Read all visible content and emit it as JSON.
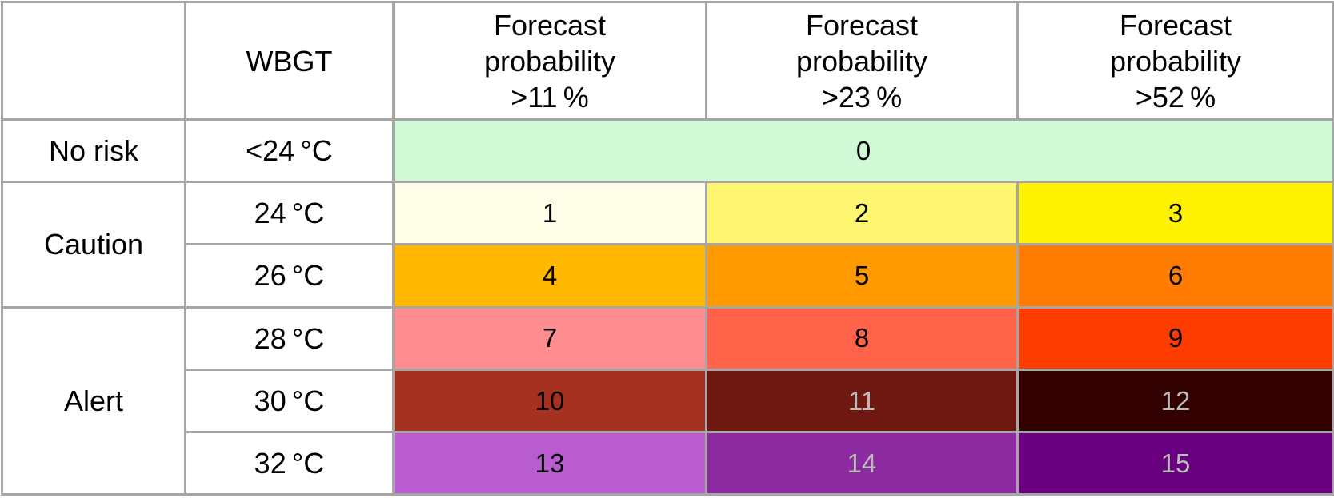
{
  "header": {
    "corner": "",
    "wbgt": "WBGT",
    "columns": [
      [
        "Forecast",
        "probability",
        ">11 %"
      ],
      [
        "Forecast",
        "probability",
        ">23 %"
      ],
      [
        "Forecast",
        "probability",
        ">52 %"
      ]
    ]
  },
  "groups": [
    {
      "label": "No risk",
      "rows": [
        {
          "wbgt": "<24 °C",
          "cells": [
            {
              "value": 0,
              "color": "#d0fad5",
              "text_color": "#000000"
            }
          ]
        }
      ]
    },
    {
      "label": "Caution",
      "rows": [
        {
          "wbgt": "24 °C",
          "cells": [
            {
              "value": 1,
              "color": "#fefde8",
              "text_color": "#000000"
            },
            {
              "value": 2,
              "color": "#fef670",
              "text_color": "#000000"
            },
            {
              "value": 3,
              "color": "#fff200",
              "text_color": "#000000"
            }
          ]
        },
        {
          "wbgt": "26 °C",
          "cells": [
            {
              "value": 4,
              "color": "#ffb700",
              "text_color": "#000000"
            },
            {
              "value": 5,
              "color": "#ff9a00",
              "text_color": "#000000"
            },
            {
              "value": 6,
              "color": "#ff7c00",
              "text_color": "#000000"
            }
          ]
        }
      ]
    },
    {
      "label": "Alert",
      "rows": [
        {
          "wbgt": "28 °C",
          "cells": [
            {
              "value": 7,
              "color": "#ff8c8e",
              "text_color": "#000000"
            },
            {
              "value": 8,
              "color": "#ff644a",
              "text_color": "#000000"
            },
            {
              "value": 9,
              "color": "#ff3c00",
              "text_color": "#000000"
            }
          ]
        },
        {
          "wbgt": "30 °C",
          "cells": [
            {
              "value": 10,
              "color": "#a63121",
              "text_color": "#000000"
            },
            {
              "value": 11,
              "color": "#6f1812",
              "text_color": "#bbbbbb"
            },
            {
              "value": 12,
              "color": "#330000",
              "text_color": "#bbbbbb"
            }
          ]
        },
        {
          "wbgt": "32 °C",
          "cells": [
            {
              "value": 13,
              "color": "#b85ccf",
              "text_color": "#000000"
            },
            {
              "value": 14,
              "color": "#8c2a9f",
              "text_color": "#bbbbbb"
            },
            {
              "value": 15,
              "color": "#690080",
              "text_color": "#bbbbbb"
            }
          ]
        }
      ]
    }
  ]
}
